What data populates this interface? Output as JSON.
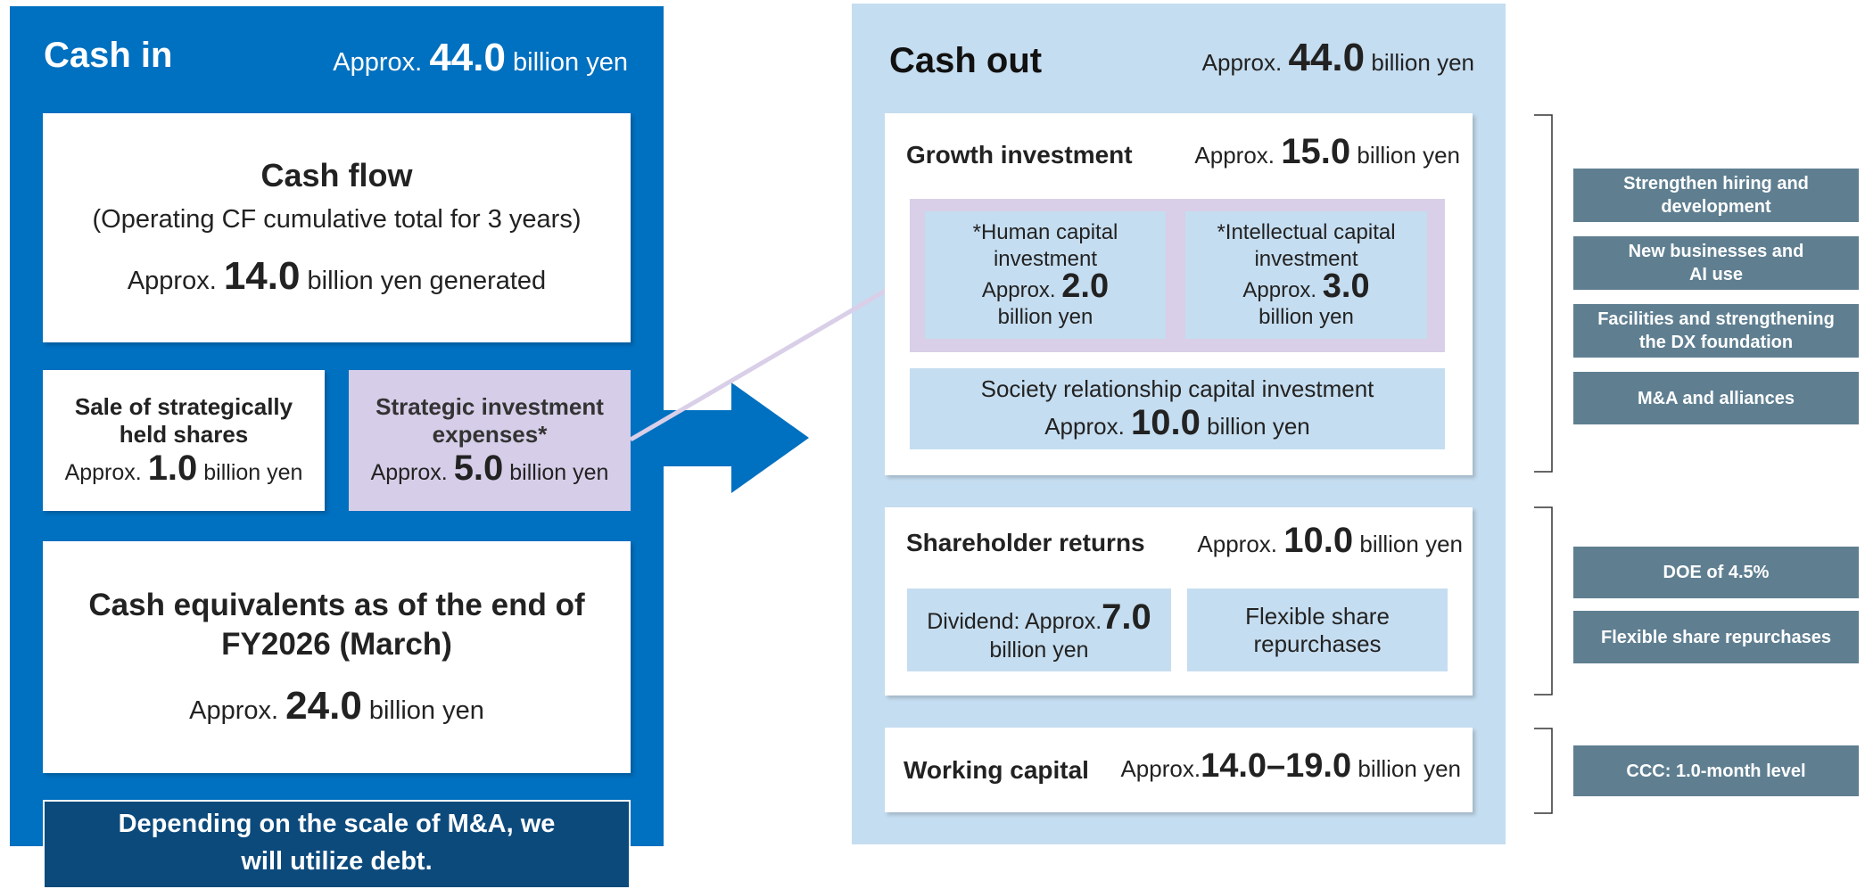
{
  "cash_in": {
    "title": "Cash in",
    "prefix": "Approx.",
    "amount": "44.0",
    "unit": "billion yen"
  },
  "cash_flow": {
    "title": "Cash flow",
    "subtitle": "(Operating CF cumulative total for 3 years)",
    "prefix": "Approx.",
    "amount": "14.0",
    "unit": "billion yen generated"
  },
  "sale_shares": {
    "title": "Sale of strategically held shares",
    "prefix": "Approx.",
    "amount": "1.0",
    "unit": "billion yen"
  },
  "strategic_expenses": {
    "title": "Strategic investment expenses*",
    "prefix": "Approx.",
    "amount": "5.0",
    "unit": "billion yen"
  },
  "cash_equivalents": {
    "title": "Cash equivalents as of the end of FY2026 (March)",
    "prefix": "Approx.",
    "amount": "24.0",
    "unit": "billion yen"
  },
  "debt_note": "Depending on the scale of M&A, we will utilize debt.",
  "cash_out": {
    "title": "Cash out",
    "prefix": "Approx.",
    "amount": "44.0",
    "unit": "billion yen"
  },
  "growth": {
    "title": "Growth investment",
    "prefix": "Approx.",
    "amount": "15.0",
    "unit": "billion yen"
  },
  "human": {
    "title": "*Human capital investment",
    "prefix": "Approx.",
    "amount": "2.0",
    "unit": "billion yen"
  },
  "intellectual": {
    "title": "*Intellectual capital investment",
    "prefix": "Approx.",
    "amount": "3.0",
    "unit": "billion yen"
  },
  "society": {
    "title": "Society relationship capital investment",
    "prefix": "Approx.",
    "amount": "10.0",
    "unit": "billion yen"
  },
  "shareholder": {
    "title": "Shareholder returns",
    "prefix": "Approx.",
    "amount": "10.0",
    "unit": "billion yen"
  },
  "dividend": {
    "prefix": "Dividend: Approx.",
    "amount": "7.0",
    "unit": "billion yen"
  },
  "repurchase": "Flexible share repurchases",
  "working": {
    "title": "Working capital",
    "prefix": "Approx.",
    "amount": "14.0–19.0",
    "unit": "billion yen"
  },
  "policies": [
    "Strengthen hiring and development",
    "New businesses and AI use",
    "Facilities and strengthening the DX foundation",
    "M&A and alliances",
    "DOE of 4.5%",
    "Flexible share repurchases",
    "CCC: 1.0-month level"
  ]
}
